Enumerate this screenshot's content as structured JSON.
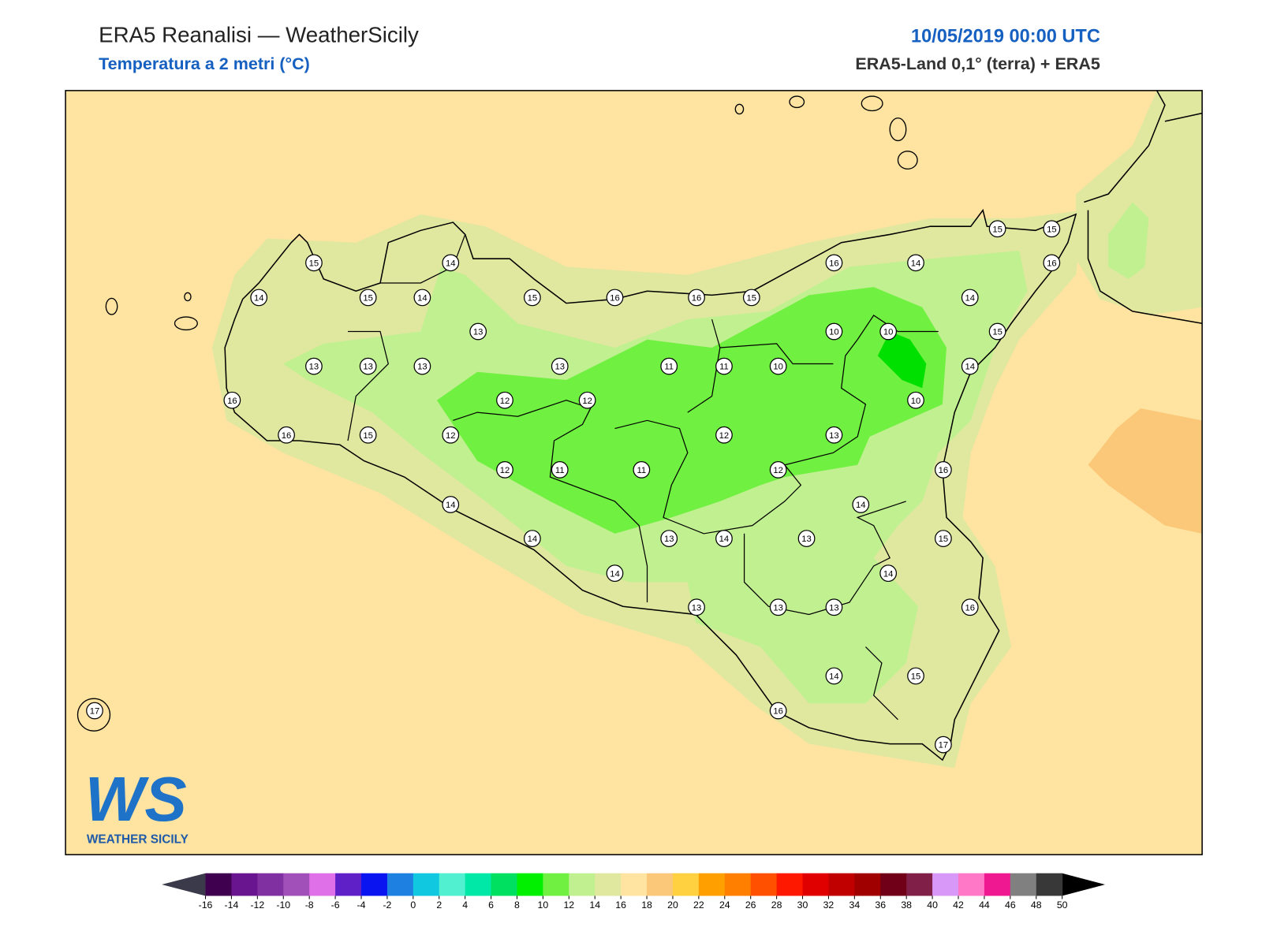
{
  "header": {
    "title": "ERA5 Reanalisi — WeatherSicily",
    "subtitle": "Temperatura a 2 metri (°C)",
    "datetime": "10/05/2019 00:00 UTC",
    "source": "ERA5-Land 0,1° (terra) + ERA5"
  },
  "map": {
    "stations": [
      15,
      14,
      14,
      15,
      14,
      15,
      16,
      16,
      15,
      16,
      14,
      15,
      15,
      16,
      14,
      13,
      10,
      10,
      15,
      13,
      13,
      13,
      13,
      11,
      11,
      10,
      14,
      16,
      12,
      12,
      10,
      16,
      15,
      12,
      12,
      13,
      12,
      11,
      11,
      12,
      16,
      14,
      14,
      14,
      13,
      14,
      13,
      15,
      14,
      14,
      13,
      13,
      13,
      16,
      14,
      15,
      16,
      17,
      17
    ]
  },
  "colorbar": {
    "ticks": [
      -16,
      -14,
      -12,
      -10,
      -8,
      -6,
      -4,
      -2,
      0,
      2,
      4,
      6,
      8,
      10,
      12,
      14,
      16,
      18,
      20,
      22,
      24,
      26,
      28,
      30,
      32,
      34,
      36,
      38,
      40,
      42,
      44,
      46,
      48,
      50
    ],
    "colors": [
      "#400050",
      "#6a1590",
      "#8030a0",
      "#a050b8",
      "#e070e8",
      "#6020c8",
      "#0a14f0",
      "#1e80e0",
      "#10c8e0",
      "#50f0d0",
      "#00e8a8",
      "#00e060",
      "#00f000",
      "#70f040",
      "#c0f090",
      "#e0e8a0",
      "#ffe3a0",
      "#fac878",
      "#ffd040",
      "#ffa000",
      "#ff8000",
      "#ff5000",
      "#ff1800",
      "#e00000",
      "#c00000",
      "#a00000",
      "#700018",
      "#802048",
      "#d898f8",
      "#ff78c8",
      "#f01890",
      "#808080",
      "#383838"
    ],
    "under_color": "#3a3a4a",
    "over_color": "#000000"
  },
  "logo": {
    "mark": "WS",
    "text": "WEATHER SICILY"
  }
}
